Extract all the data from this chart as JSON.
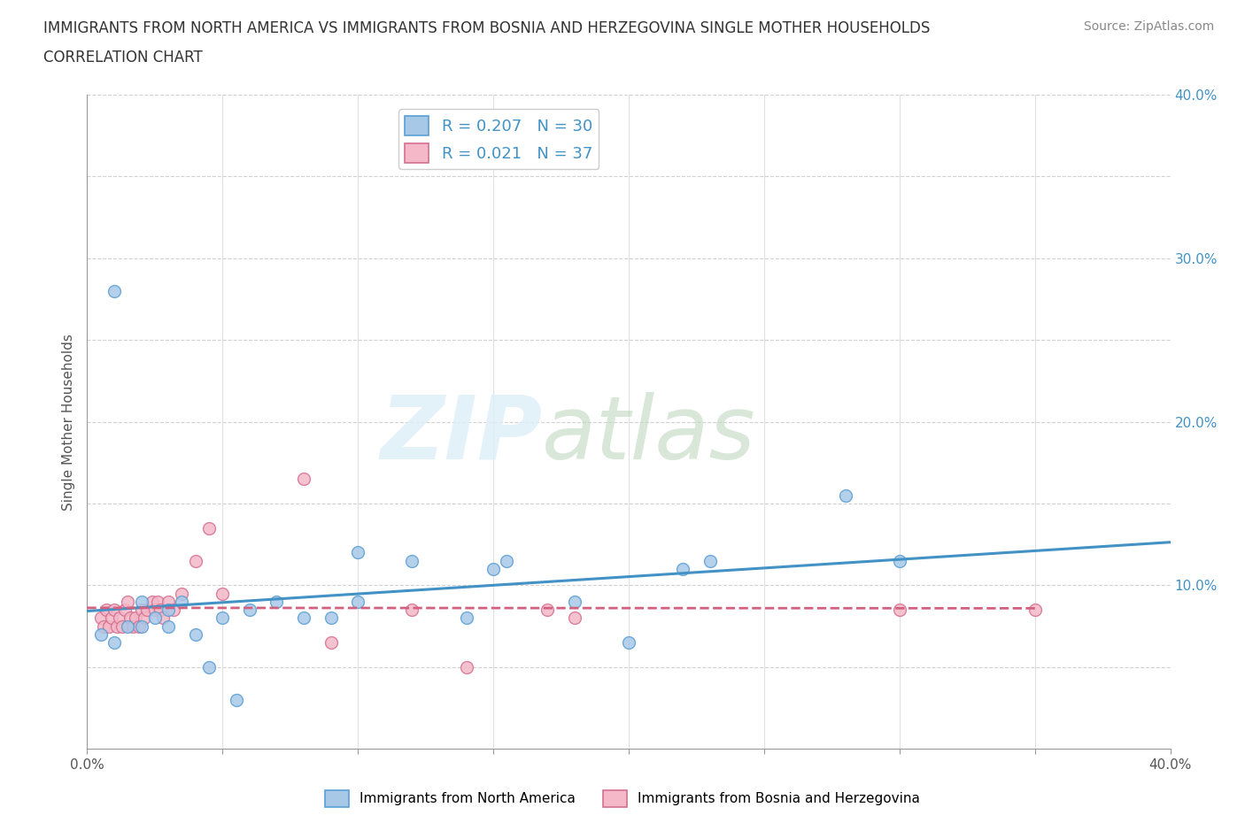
{
  "title_line1": "IMMIGRANTS FROM NORTH AMERICA VS IMMIGRANTS FROM BOSNIA AND HERZEGOVINA SINGLE MOTHER HOUSEHOLDS",
  "title_line2": "CORRELATION CHART",
  "source_text": "Source: ZipAtlas.com",
  "ylabel": "Single Mother Households",
  "xlim": [
    0.0,
    0.4
  ],
  "ylim": [
    0.0,
    0.4
  ],
  "xticks": [
    0.0,
    0.05,
    0.1,
    0.15,
    0.2,
    0.25,
    0.3,
    0.35,
    0.4
  ],
  "yticks": [
    0.0,
    0.05,
    0.1,
    0.15,
    0.2,
    0.25,
    0.3,
    0.35,
    0.4
  ],
  "grid_color": "#cccccc",
  "background_color": "#ffffff",
  "watermark_zip": "ZIP",
  "watermark_atlas": "atlas",
  "blue_color": "#a8c8e8",
  "blue_edge_color": "#5a9fd4",
  "pink_color": "#f4b8c8",
  "pink_edge_color": "#d47090",
  "blue_line_color": "#4292c6",
  "pink_line_color": "#d46080",
  "R_blue": 0.207,
  "N_blue": 30,
  "R_pink": 0.021,
  "N_pink": 37,
  "blue_scatter_x": [
    0.005,
    0.01,
    0.015,
    0.02,
    0.02,
    0.025,
    0.03,
    0.03,
    0.04,
    0.05,
    0.06,
    0.07,
    0.08,
    0.09,
    0.1,
    0.1,
    0.12,
    0.14,
    0.15,
    0.155,
    0.18,
    0.2,
    0.22,
    0.23,
    0.28,
    0.3,
    0.01,
    0.035,
    0.045,
    0.055
  ],
  "blue_scatter_y": [
    0.07,
    0.065,
    0.075,
    0.075,
    0.09,
    0.08,
    0.075,
    0.085,
    0.07,
    0.08,
    0.085,
    0.09,
    0.08,
    0.08,
    0.12,
    0.09,
    0.115,
    0.08,
    0.11,
    0.115,
    0.09,
    0.065,
    0.11,
    0.115,
    0.155,
    0.115,
    0.28,
    0.09,
    0.05,
    0.03
  ],
  "pink_scatter_x": [
    0.005,
    0.006,
    0.007,
    0.008,
    0.009,
    0.01,
    0.011,
    0.012,
    0.013,
    0.014,
    0.015,
    0.016,
    0.017,
    0.018,
    0.019,
    0.02,
    0.021,
    0.022,
    0.024,
    0.025,
    0.026,
    0.027,
    0.028,
    0.03,
    0.032,
    0.035,
    0.04,
    0.045,
    0.05,
    0.08,
    0.09,
    0.12,
    0.14,
    0.17,
    0.18,
    0.3,
    0.35
  ],
  "pink_scatter_y": [
    0.08,
    0.075,
    0.085,
    0.075,
    0.08,
    0.085,
    0.075,
    0.08,
    0.075,
    0.085,
    0.09,
    0.08,
    0.075,
    0.08,
    0.075,
    0.085,
    0.08,
    0.085,
    0.09,
    0.085,
    0.09,
    0.085,
    0.08,
    0.09,
    0.085,
    0.095,
    0.115,
    0.135,
    0.095,
    0.165,
    0.065,
    0.085,
    0.05,
    0.085,
    0.08,
    0.085,
    0.085
  ],
  "legend_fontsize": 13,
  "title_fontsize": 12,
  "axis_label_fontsize": 11,
  "scatter_size": 100
}
